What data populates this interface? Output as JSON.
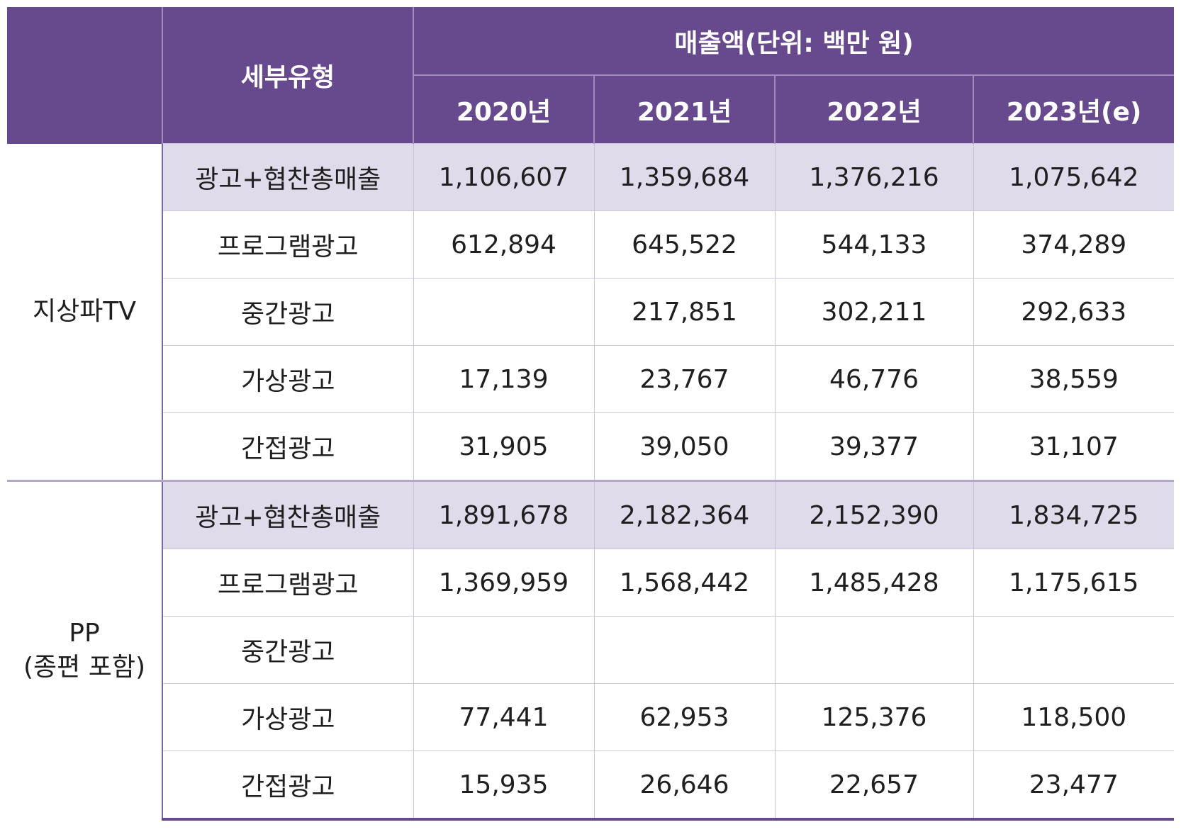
{
  "header": {
    "subtype": "세부유형",
    "revenue": "매출액(단위: 백만 원)",
    "years": [
      "2020년",
      "2021년",
      "2022년",
      "2023년(e)"
    ]
  },
  "groups": [
    {
      "category": "지상파TV",
      "rows": [
        {
          "label": "광고+협찬총매출",
          "values": [
            "1,106,607",
            "1,359,684",
            "1,376,216",
            "1,075,642"
          ]
        },
        {
          "label": "프로그램광고",
          "values": [
            "612,894",
            "645,522",
            "544,133",
            "374,289"
          ]
        },
        {
          "label": "중간광고",
          "values": [
            "",
            "217,851",
            "302,211",
            "292,633"
          ]
        },
        {
          "label": "가상광고",
          "values": [
            "17,139",
            "23,767",
            "46,776",
            "38,559"
          ]
        },
        {
          "label": "간접광고",
          "values": [
            "31,905",
            "39,050",
            "39,377",
            "31,107"
          ]
        }
      ]
    },
    {
      "category_line1": "PP",
      "category_line2": "(종편 포함)",
      "rows": [
        {
          "label": "광고+협찬총매출",
          "values": [
            "1,891,678",
            "2,182,364",
            "2,152,390",
            "1,834,725"
          ]
        },
        {
          "label": "프로그램광고",
          "values": [
            "1,369,959",
            "1,568,442",
            "1,485,428",
            "1,175,615"
          ]
        },
        {
          "label": "중간광고",
          "values": [
            "",
            "",
            "",
            ""
          ]
        },
        {
          "label": "가상광고",
          "values": [
            "77,441",
            "62,953",
            "125,376",
            "118,500"
          ]
        },
        {
          "label": "간접광고",
          "values": [
            "15,935",
            "26,646",
            "22,657",
            "23,477"
          ]
        }
      ]
    }
  ]
}
